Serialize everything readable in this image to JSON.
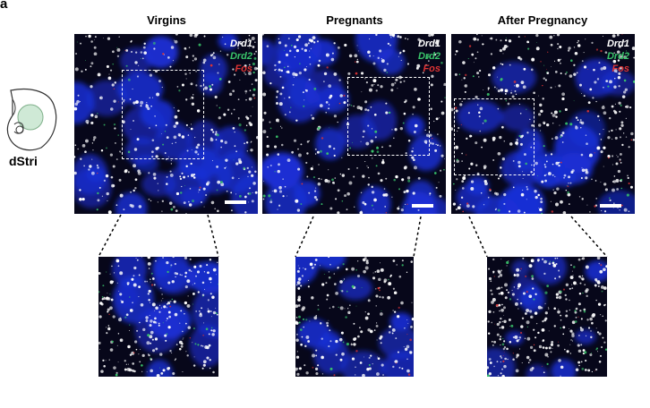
{
  "figure": {
    "panel_letter": "a",
    "region_label": "dStri",
    "columns": [
      {
        "title": "Virgins"
      },
      {
        "title": "Pregnants"
      },
      {
        "title": "After Pregnancy"
      }
    ],
    "legend": {
      "drd1": "Drd1",
      "drd2": "Drd2",
      "fos": "Fos"
    },
    "colors": {
      "nuclei": "#1a2fd6",
      "drd1": "#ffffff",
      "drd2": "#39c46a",
      "fos": "#e03434",
      "background": "#07071a"
    }
  }
}
